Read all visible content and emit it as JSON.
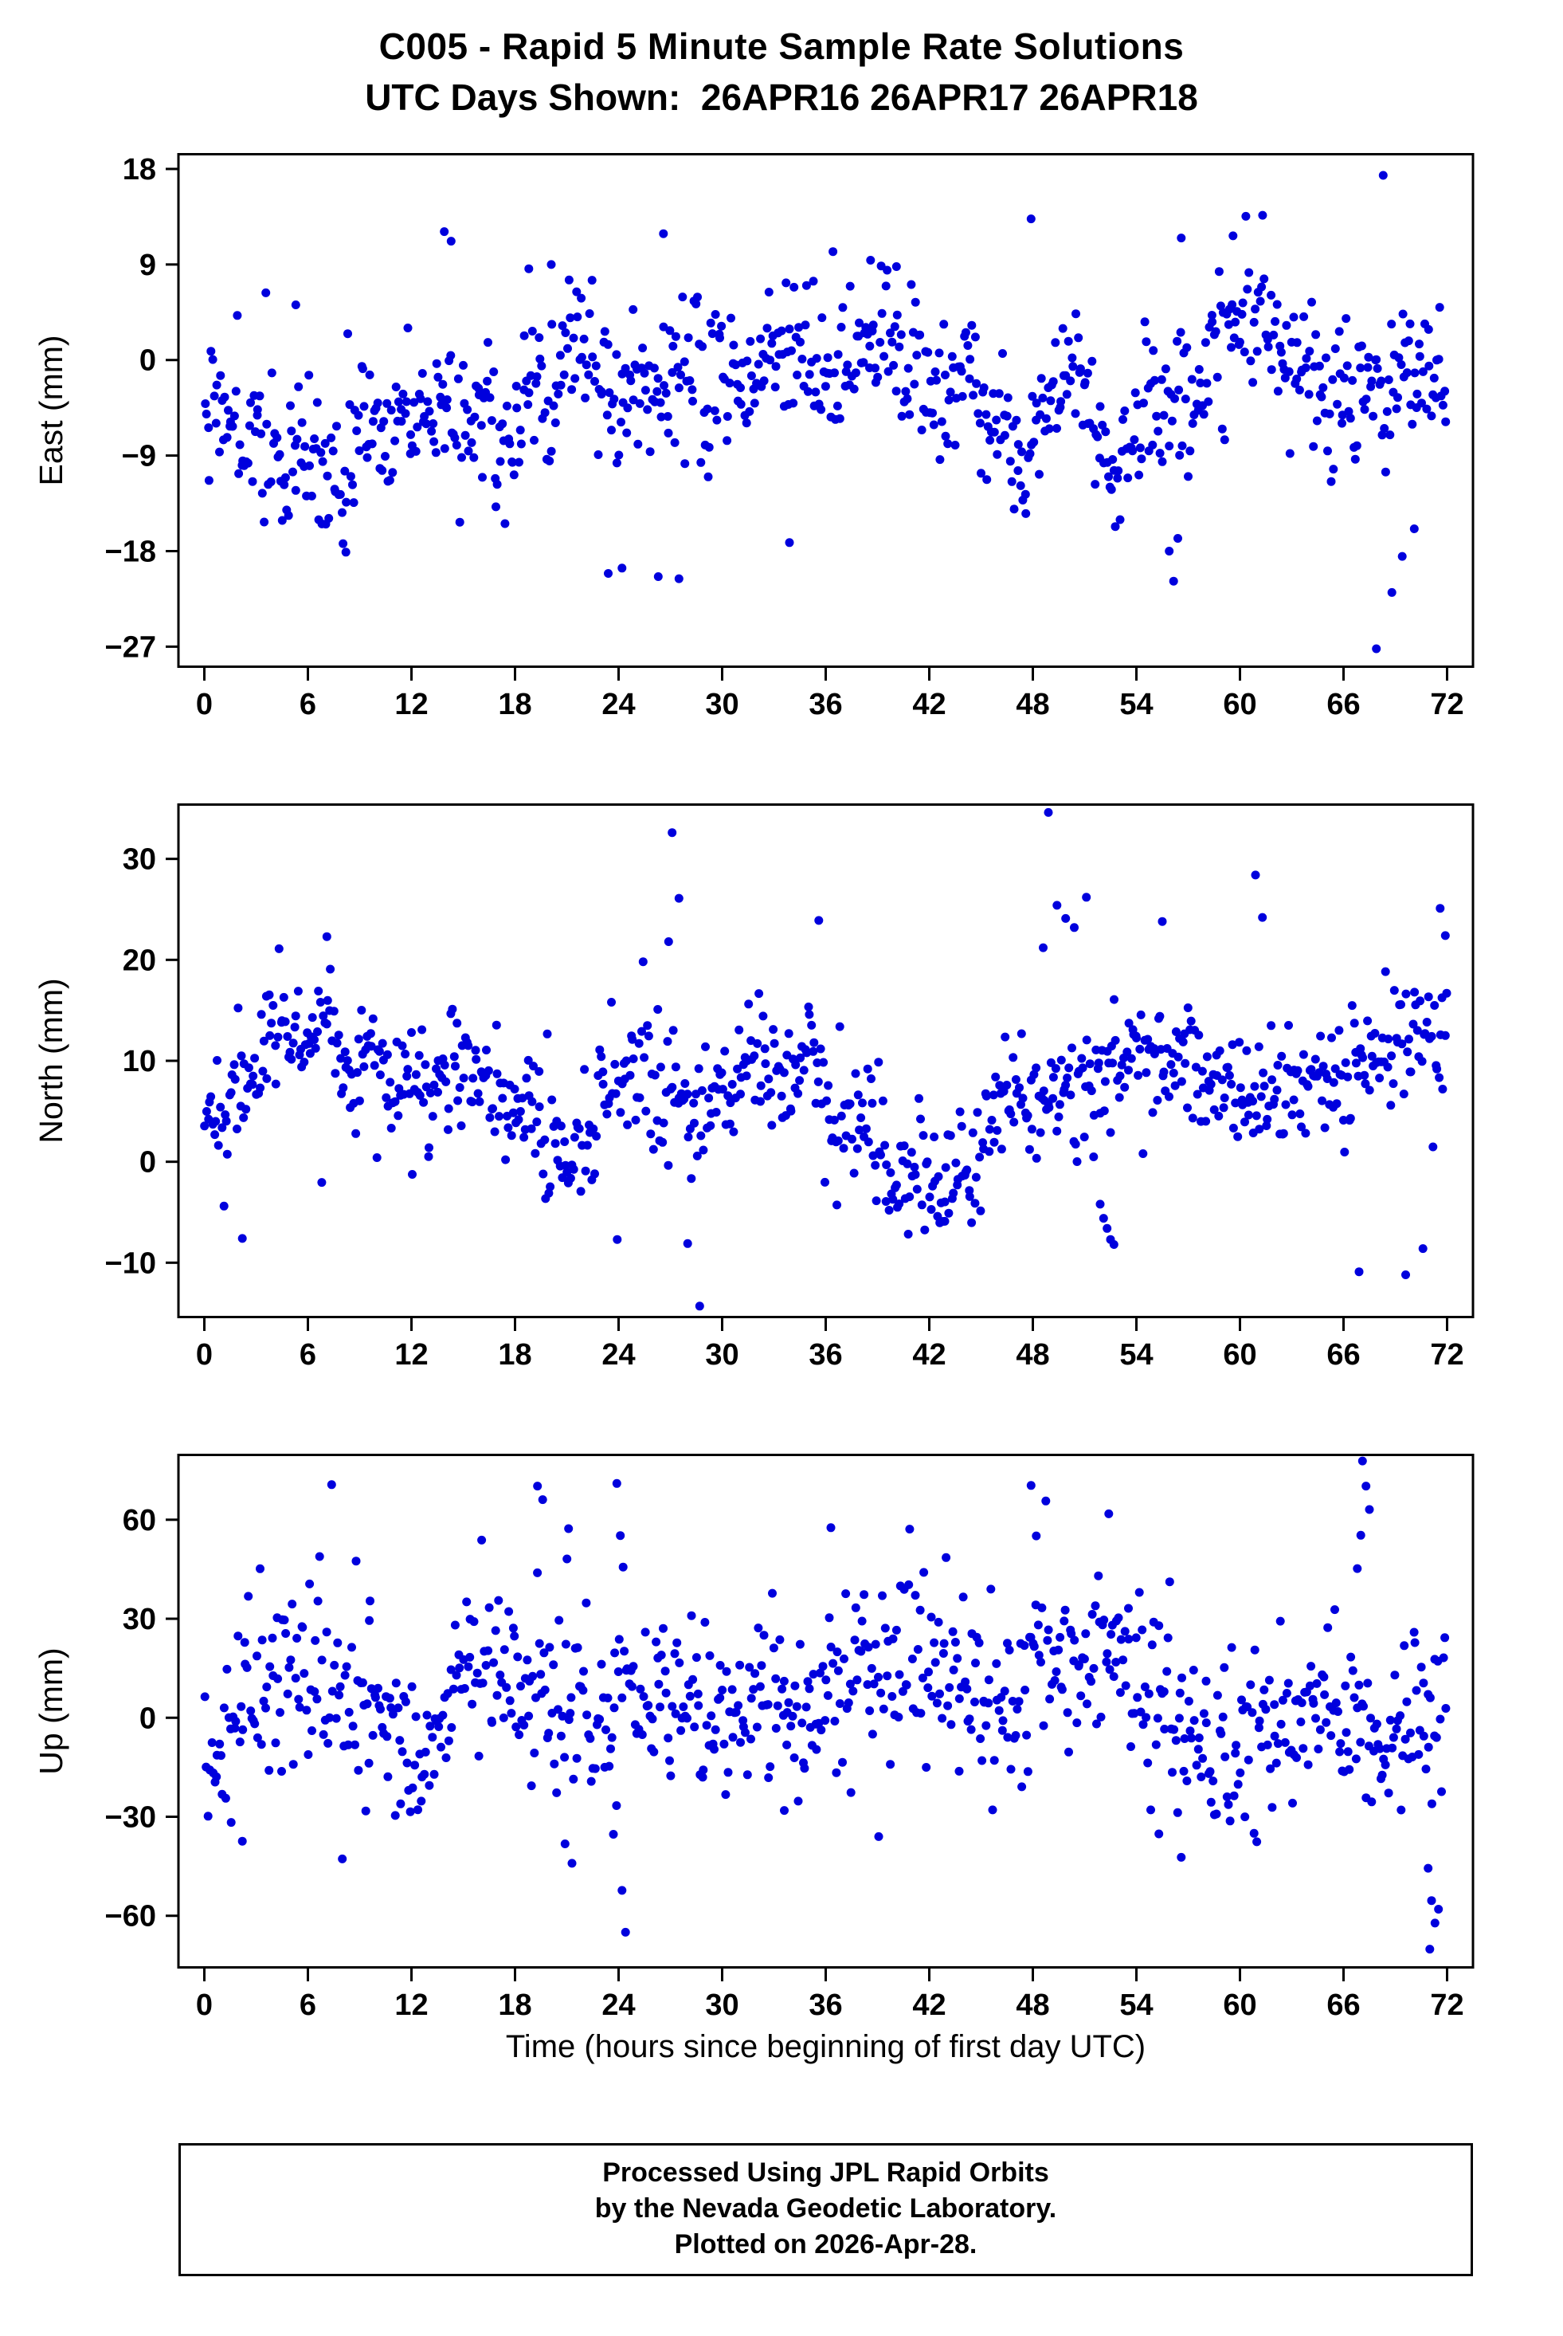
{
  "page": {
    "title_line1": "C005 - Rapid 5 Minute Sample Rate Solutions",
    "title_line2": "UTC Days Shown:  26APR16 26APR17 26APR18",
    "x_axis_label": "Time (hours since beginning of first day UTC)",
    "footer_lines": [
      "Processed Using JPL Rapid Orbits",
      "by the Nevada Geodetic Laboratory.",
      "Plotted on 2026-Apr-28."
    ],
    "marker_color": "#0000dd",
    "frame_color": "#000000"
  },
  "chart_data": [
    {
      "id": "east",
      "type": "scatter",
      "ylabel": "East (mm)",
      "xlim": [
        -1.5,
        73.5
      ],
      "ylim": [
        -29,
        19.5
      ],
      "xticks": [
        0,
        6,
        12,
        18,
        24,
        30,
        36,
        42,
        48,
        54,
        60,
        66,
        72
      ],
      "yticks": [
        18,
        9,
        0,
        -9,
        -18,
        -27
      ],
      "x_units": "hours",
      "n_points": 820,
      "gen": {
        "seed": 42,
        "x0": 0.05,
        "x1": 71.95,
        "xjitter": 0.08,
        "mean": -3.4,
        "waves": [
          {
            "period": 24,
            "amp": 3.0,
            "phase": 8
          },
          {
            "period": 60,
            "amp": 1.2,
            "phase": 30
          }
        ],
        "noise_sd": 3.4,
        "walk_sd": 0.7,
        "walk_ar": 0.98,
        "tail_p": 0.03,
        "tail_scale": 2.0,
        "clamp": [
          -25.5,
          16.0
        ]
      },
      "outliers": [
        [
          13.9,
          12.1
        ],
        [
          14.3,
          11.2
        ],
        [
          20.1,
          9.0
        ],
        [
          18.8,
          8.6
        ],
        [
          26.6,
          11.9
        ],
        [
          38.6,
          9.4
        ],
        [
          40.1,
          8.8
        ],
        [
          47.9,
          13.3
        ],
        [
          56.6,
          11.5
        ],
        [
          59.6,
          11.7
        ],
        [
          68.3,
          17.4
        ],
        [
          5.3,
          5.2
        ],
        [
          8.2,
          -18.1
        ],
        [
          23.4,
          -20.1
        ],
        [
          24.2,
          -19.6
        ],
        [
          26.3,
          -20.4
        ],
        [
          27.5,
          -20.6
        ],
        [
          33.9,
          -17.2
        ],
        [
          55.9,
          -18.0
        ],
        [
          56.4,
          -16.8
        ],
        [
          67.9,
          -27.2
        ],
        [
          68.8,
          -21.9
        ],
        [
          69.4,
          -18.5
        ],
        [
          70.1,
          -15.9
        ]
      ]
    },
    {
      "id": "north",
      "type": "scatter",
      "ylabel": "North (mm)",
      "xlim": [
        -1.5,
        73.5
      ],
      "ylim": [
        -15.5,
        35.5
      ],
      "xticks": [
        0,
        6,
        12,
        18,
        24,
        30,
        36,
        42,
        48,
        54,
        60,
        66,
        72
      ],
      "yticks": [
        30,
        20,
        10,
        0,
        -10
      ],
      "x_units": "hours",
      "n_points": 820,
      "gen": {
        "seed": 7,
        "x0": 0.05,
        "x1": 71.95,
        "xjitter": 0.08,
        "mean": 7.6,
        "waves": [
          {
            "period": 48,
            "amp": 1.8,
            "phase": 14
          },
          {
            "period": 10.5,
            "amp": 1.3,
            "phase": 2
          }
        ],
        "noise_sd": 3.0,
        "walk_sd": 0.6,
        "walk_ar": 0.98,
        "tail_p": 0.025,
        "tail_scale": 2.0,
        "clamp": [
          -12.5,
          31.0
        ]
      },
      "outliers": [
        [
          7.1,
          22.3
        ],
        [
          27.1,
          32.6
        ],
        [
          27.5,
          26.1
        ],
        [
          26.9,
          21.8
        ],
        [
          35.6,
          23.9
        ],
        [
          48.9,
          34.6
        ],
        [
          49.4,
          25.4
        ],
        [
          49.9,
          24.1
        ],
        [
          50.4,
          23.2
        ],
        [
          48.6,
          21.2
        ],
        [
          51.1,
          26.2
        ],
        [
          55.5,
          23.8
        ],
        [
          60.9,
          28.4
        ],
        [
          61.3,
          24.2
        ],
        [
          71.6,
          25.1
        ],
        [
          71.9,
          22.4
        ],
        [
          2.2,
          -7.6
        ],
        [
          28.0,
          -8.1
        ],
        [
          28.7,
          -14.3
        ],
        [
          42.9,
          -5.9
        ],
        [
          51.9,
          -4.2
        ],
        [
          52.1,
          -5.6
        ],
        [
          52.3,
          -6.6
        ],
        [
          52.5,
          -7.7
        ],
        [
          52.7,
          -8.2
        ],
        [
          66.9,
          -10.9
        ],
        [
          69.6,
          -11.2
        ],
        [
          70.6,
          -8.6
        ]
      ]
    },
    {
      "id": "up",
      "type": "scatter",
      "ylabel": "Up (mm)",
      "xlim": [
        -1.5,
        73.5
      ],
      "ylim": [
        -76,
        80
      ],
      "xticks": [
        0,
        6,
        12,
        18,
        24,
        30,
        36,
        42,
        48,
        54,
        60,
        66,
        72
      ],
      "yticks": [
        60,
        30,
        0,
        -30,
        -60
      ],
      "x_units": "hours",
      "n_points": 800,
      "gen": {
        "seed": 99,
        "x0": 0.05,
        "x1": 71.95,
        "xjitter": 0.08,
        "mean": 7.0,
        "waves": [
          {
            "period": 12,
            "amp": 7,
            "phase": 2
          },
          {
            "period": 28,
            "amp": 5,
            "phase": 6
          }
        ],
        "noise_sd": 13.0,
        "walk_sd": 1.5,
        "walk_ar": 0.98,
        "tail_p": 0.04,
        "tail_scale": 1.8,
        "clamp": [
          -66,
          74
        ]
      },
      "outliers": [
        [
          19.3,
          70.2
        ],
        [
          19.6,
          66.1
        ],
        [
          21.1,
          57.3
        ],
        [
          23.9,
          71.0
        ],
        [
          24.1,
          55.2
        ],
        [
          47.9,
          70.4
        ],
        [
          48.2,
          55.1
        ],
        [
          52.4,
          61.8
        ],
        [
          36.3,
          57.6
        ],
        [
          9.6,
          35.4
        ],
        [
          67.1,
          77.8
        ],
        [
          67.3,
          70.2
        ],
        [
          67.5,
          63.1
        ],
        [
          67.0,
          55.3
        ],
        [
          66.8,
          45.2
        ],
        [
          2.2,
          -37.4
        ],
        [
          20.9,
          -38.2
        ],
        [
          21.3,
          -44.1
        ],
        [
          23.7,
          -35.3
        ],
        [
          24.2,
          -52.3
        ],
        [
          24.4,
          -65.0
        ],
        [
          33.6,
          -28.1
        ],
        [
          55.3,
          -35.2
        ],
        [
          56.6,
          -42.3
        ],
        [
          70.9,
          -45.6
        ],
        [
          71.0,
          -70.1
        ],
        [
          71.1,
          -55.4
        ],
        [
          71.3,
          -62.2
        ],
        [
          71.5,
          -58.0
        ]
      ]
    }
  ]
}
